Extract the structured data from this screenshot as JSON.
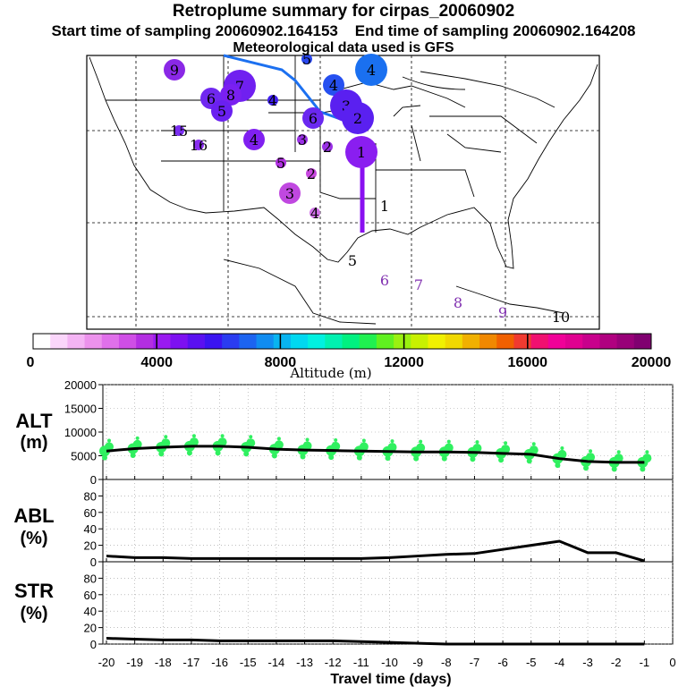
{
  "header": {
    "title": "Retroplume summary for cirpas_20060902",
    "start_label": "Start time of sampling 20060902.164153",
    "end_label": "End time of sampling 20060902.164208",
    "met_label": "Meteorological data used is GFS"
  },
  "colorbar": {
    "ticks": [
      "0",
      "4000",
      "8000",
      "12000",
      "16000",
      "20000"
    ],
    "label": "Altitude (m)",
    "colors": [
      "#ffffff",
      "#fbd6fb",
      "#f4b4f4",
      "#ec92ec",
      "#e070ea",
      "#cf4ee6",
      "#b32ee2",
      "#9a1af0",
      "#7d10f0",
      "#5a10f0",
      "#3a14f0",
      "#2a3cf0",
      "#1c64f0",
      "#108cf0",
      "#08b4f0",
      "#00d8f0",
      "#00f0e0",
      "#00f0b0",
      "#00f080",
      "#20f050",
      "#60f020",
      "#9af010",
      "#c8f000",
      "#f0f000",
      "#f0d800",
      "#f0b000",
      "#f08800",
      "#f06000",
      "#f03a30",
      "#f01070",
      "#f00098",
      "#e00090",
      "#c8008c",
      "#b00080",
      "#980078",
      "#800070"
    ]
  },
  "map": {
    "points": [
      {
        "label": "9",
        "color": "#8a28e6",
        "size": "m",
        "glyph": "9"
      },
      {
        "label": "5",
        "color": "#2a48f0",
        "size": "s",
        "glyph": "5"
      },
      {
        "label": "4",
        "color": "#1a70f0",
        "size": "l",
        "glyph": "4"
      },
      {
        "label": "7",
        "color": "#7020f0",
        "size": "l",
        "glyph": "7"
      },
      {
        "label": "8",
        "color": "#7a20f0",
        "size": "m",
        "glyph": "8"
      },
      {
        "label": "6",
        "color": "#7028f0",
        "size": "m",
        "glyph": "6"
      },
      {
        "label": "5",
        "color": "#6a20f0",
        "size": "m",
        "glyph": "5"
      },
      {
        "label": "4",
        "color": "#4020f0",
        "size": "s",
        "glyph": "4"
      },
      {
        "label": "4",
        "color": "#2650f0",
        "size": "m",
        "glyph": "4"
      },
      {
        "label": "3",
        "color": "#5a20f0",
        "size": "l",
        "glyph": "3"
      },
      {
        "label": "2",
        "color": "#5a20f0",
        "size": "l",
        "glyph": "2"
      },
      {
        "label": "6",
        "color": "#6a28f0",
        "size": "m",
        "glyph": "6"
      },
      {
        "label": "15",
        "color": "#7a2ef0",
        "size": "s",
        "glyph": "15"
      },
      {
        "label": "16",
        "color": "#8a2ef0",
        "size": "s",
        "glyph": "16"
      },
      {
        "label": "4",
        "color": "#8020f0",
        "size": "m",
        "glyph": "4"
      },
      {
        "label": "3",
        "color": "#9a30e6",
        "size": "s",
        "glyph": "3"
      },
      {
        "label": "2",
        "color": "#9a30e6",
        "size": "s",
        "glyph": "2"
      },
      {
        "label": "1",
        "color": "#8a1ef0",
        "size": "l",
        "glyph": "1"
      },
      {
        "label": "5",
        "color": "#b030e0",
        "size": "s",
        "glyph": "5"
      },
      {
        "label": "2",
        "color": "#c848e0",
        "size": "s",
        "glyph": "2"
      },
      {
        "label": "3",
        "color": "#c048e0",
        "size": "m",
        "glyph": "3"
      },
      {
        "label": "4",
        "color": "#d070e8",
        "size": "s",
        "glyph": "4"
      },
      {
        "label": "1",
        "color": "#ffffff",
        "size": "s",
        "glyph": "1"
      },
      {
        "label": "5",
        "color": "#ffffff",
        "size": "s",
        "glyph": "5"
      },
      {
        "label": "6",
        "color": "#f0c0f0",
        "size": "s",
        "glyph": "6"
      },
      {
        "label": "7",
        "color": "#f0c0f0",
        "size": "s",
        "glyph": "7"
      },
      {
        "label": "8",
        "color": "#f0c0f0",
        "size": "s",
        "glyph": "8"
      },
      {
        "label": "9",
        "color": "#f0c0f0",
        "size": "s",
        "glyph": "9"
      },
      {
        "label": "10",
        "color": "#ffffff",
        "size": "s",
        "glyph": "10"
      }
    ]
  },
  "chart_data": [
    {
      "type": "scatter",
      "title": "ALT (m)",
      "ylabel_line1": "ALT",
      "ylabel_line2": "(m)",
      "ylim": [
        0,
        20000
      ],
      "yticks": [
        "0",
        "5000",
        "10000",
        "15000",
        "20000"
      ],
      "mean_line": {
        "x": [
          -20,
          -19,
          -18,
          -17,
          -16,
          -15,
          -14,
          -13,
          -12,
          -11,
          -10,
          -9,
          -8,
          -7,
          -6,
          -5,
          -4,
          -3,
          -2,
          -1
        ],
        "y": [
          6000,
          6500,
          6800,
          7000,
          7000,
          6800,
          6400,
          6200,
          6100,
          6000,
          5900,
          5800,
          5800,
          5700,
          5500,
          5300,
          4400,
          3800,
          3600,
          3600
        ]
      },
      "scatter_color": "#30f060"
    },
    {
      "type": "line",
      "title": "ABL (%)",
      "ylabel_line1": "ABL",
      "ylabel_line2": "(%)",
      "ylim": [
        0,
        100
      ],
      "yticks": [
        "0",
        "20",
        "40",
        "60",
        "80"
      ],
      "x": [
        -20,
        -19,
        -18,
        -17,
        -16,
        -15,
        -14,
        -13,
        -12,
        -11,
        -10,
        -9,
        -8,
        -7,
        -6,
        -5,
        -4,
        -3,
        -2,
        -1
      ],
      "y": [
        7,
        5,
        5,
        4,
        4,
        4,
        4,
        4,
        4,
        4,
        5,
        7,
        9,
        10,
        15,
        20,
        25,
        11,
        11,
        1
      ]
    },
    {
      "type": "line",
      "title": "STR (%)",
      "ylabel_line1": "STR",
      "ylabel_line2": "(%)",
      "ylim": [
        0,
        100
      ],
      "yticks": [
        "0",
        "20",
        "40",
        "60",
        "80"
      ],
      "x": [
        -20,
        -19,
        -18,
        -17,
        -16,
        -15,
        -14,
        -13,
        -12,
        -11,
        -10,
        -9,
        -8,
        -7,
        -6,
        -5,
        -4,
        -3,
        -2,
        -1
      ],
      "y": [
        7,
        6,
        5,
        5,
        4,
        4,
        4,
        4,
        4,
        3,
        2,
        1,
        0,
        0,
        0,
        0,
        0,
        0,
        0,
        0
      ]
    }
  ],
  "xaxis": {
    "label": "Travel time (days)",
    "ticks": [
      "-20",
      "-19",
      "-18",
      "-17",
      "-16",
      "-15",
      "-14",
      "-13",
      "-12",
      "-11",
      "-10",
      "-9",
      "-8",
      "-7",
      "-6",
      "-5",
      "-4",
      "-3",
      "-2",
      "-1",
      "0"
    ]
  }
}
